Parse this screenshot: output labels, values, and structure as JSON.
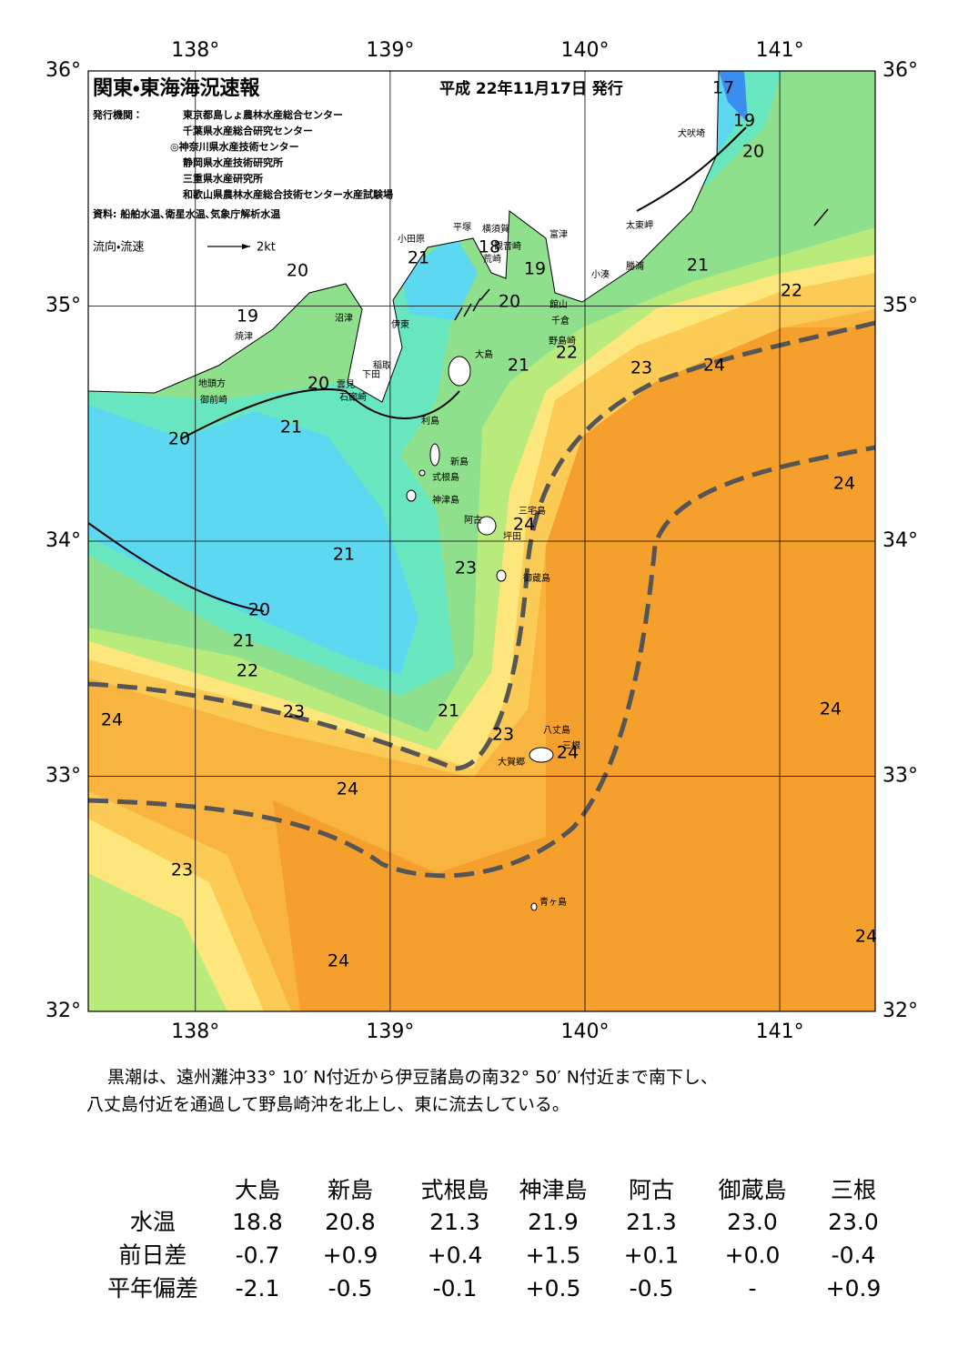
{
  "header": {
    "title": "関東・東海海況速報",
    "date": "平成 22年11月17日 発行",
    "issuer_label": "発行機関：",
    "issuers": [
      "東京都島しょ農林水産総合センター",
      "千葉県水産総合研究センター",
      "◎神奈川県水産技術センター",
      "静岡県水産技術研究所",
      "三重県水産研究所",
      "和歌山県農林水産総合技術センター水産試験場"
    ],
    "source": "資料: 船舶水温､衛星水温､気象庁解析水温",
    "legend_label": "流向・流速",
    "legend_speed": "2kt"
  },
  "map": {
    "xlim": [
      137.45,
      141.49
    ],
    "ylim": [
      32,
      36
    ],
    "xticks": [
      {
        "value": 138,
        "label": "138°"
      },
      {
        "value": 139,
        "label": "139°"
      },
      {
        "value": 140,
        "label": "140°"
      },
      {
        "value": 141,
        "label": "141°"
      }
    ],
    "yticks": [
      {
        "value": 32,
        "label": "32°"
      },
      {
        "value": 33,
        "label": "33°"
      },
      {
        "value": 34,
        "label": "34°"
      },
      {
        "value": 35,
        "label": "35°"
      },
      {
        "value": 36,
        "label": "36°"
      }
    ],
    "temperature_labels": [
      "17",
      "19",
      "20",
      "21",
      "22",
      "20",
      "19",
      "21",
      "18",
      "19",
      "20",
      "22",
      "21",
      "23",
      "24",
      "20",
      "21",
      "20",
      "24",
      "24",
      "21",
      "23",
      "20",
      "21",
      "22",
      "24",
      "23",
      "21",
      "24",
      "23",
      "24",
      "24",
      "23",
      "24",
      "24"
    ],
    "place_names": [
      "犬吠埼",
      "太東岬",
      "富津",
      "勝浦",
      "小湊",
      "館山",
      "千倉",
      "野島崎",
      "平塚",
      "横須賀",
      "観音崎",
      "荒崎",
      "小田原",
      "沼津",
      "伊東",
      "焼津",
      "大島",
      "稲取",
      "下田",
      "雲見",
      "石廊崎",
      "地頭方",
      "御前崎",
      "利島",
      "新島",
      "式根島",
      "神津島",
      "三宅島",
      "阿古",
      "坪田",
      "御蔵島",
      "八丈島",
      "三根",
      "大賀郷",
      "青ヶ島"
    ]
  },
  "description": [
    "黒潮は、遠州灘沖33° 10′ N付近から伊豆諸島の南32° 50′ N付近まで南下し、",
    "八丈島付近を通過して野島崎沖を北上し、東に流去している。"
  ],
  "table": {
    "columns": [
      "大島",
      "新島",
      "式根島",
      "神津島",
      "阿古",
      "御蔵島",
      "三根"
    ],
    "rows": [
      {
        "label": "水温",
        "values": [
          "18.8",
          "20.8",
          "21.3",
          "21.9",
          "21.3",
          "23.0",
          "23.0"
        ]
      },
      {
        "label": "前日差",
        "values": [
          "-0.7",
          "+0.9",
          "+0.4",
          "+1.5",
          "+0.1",
          "+0.0",
          "-0.4"
        ]
      },
      {
        "label": "平年偏差",
        "values": [
          "-2.1",
          "-0.5",
          "-0.1",
          "+0.5",
          "-0.5",
          "-",
          "+0.9"
        ]
      }
    ]
  }
}
